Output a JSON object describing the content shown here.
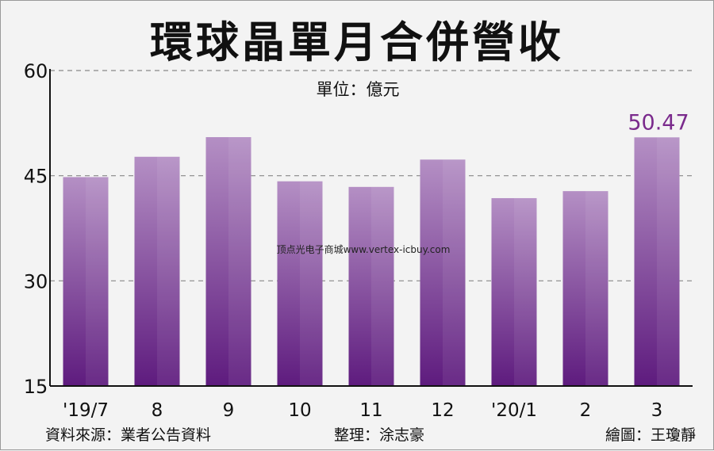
{
  "chart_data": {
    "type": "bar",
    "title": "環球晶單月合併營收",
    "unit_label": "單位：億元",
    "categories": [
      "'19/7",
      "8",
      "9",
      "10",
      "11",
      "12",
      "'20/1",
      "2",
      "3"
    ],
    "values": [
      44.8,
      47.7,
      50.5,
      44.2,
      43.4,
      47.3,
      41.8,
      42.8,
      50.47
    ],
    "yticks": [
      15,
      30,
      45,
      60
    ],
    "ylim": [
      15,
      60
    ],
    "highlight_label": "50.47",
    "highlight_index": 8,
    "grid": true,
    "xlabel": "",
    "ylabel": ""
  },
  "watermark": "顶点光电子商城www.vertex-icbuy.com",
  "footer": {
    "source": "資料來源：業者公告資料",
    "editor": "整理：涂志豪",
    "artist": "繪圖：王瓊靜"
  },
  "colors": {
    "bar_top": "#b48fc4",
    "bar_bottom": "#5e1b7e",
    "highlight_text": "#7a2a8c",
    "grid": "#888888"
  }
}
